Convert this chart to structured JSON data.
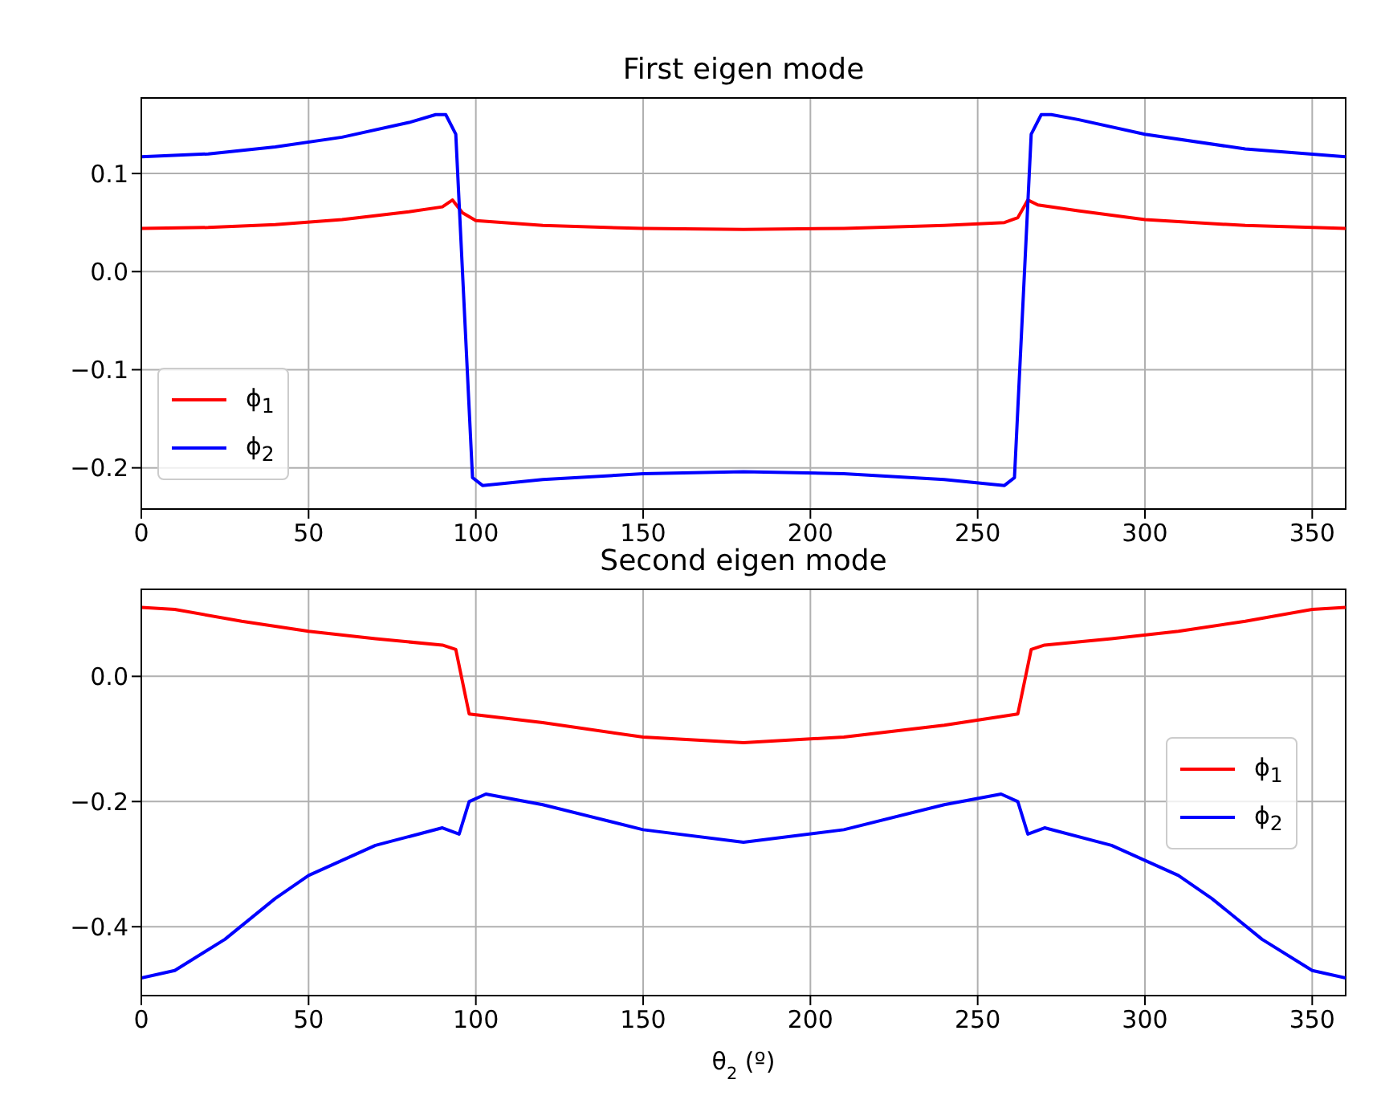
{
  "chart_data": [
    {
      "type": "line",
      "title": "First eigen mode",
      "xlim": [
        0,
        360
      ],
      "xticks": [
        0,
        50,
        100,
        150,
        200,
        250,
        300,
        350
      ],
      "ylim": [
        -0.242,
        0.177
      ],
      "yticks": [
        {
          "value": -0.2,
          "label": "−0.2"
        },
        {
          "value": -0.1,
          "label": "−0.1"
        },
        {
          "value": 0,
          "label": "0.0"
        },
        0.1
      ],
      "grid": true,
      "legend": "lower left",
      "series": [
        {
          "name": "ϕ$_{1}$",
          "color": "#ff0000",
          "x": [
            0,
            20,
            40,
            60,
            80,
            90,
            93,
            96,
            100,
            120,
            150,
            180,
            210,
            240,
            258,
            262,
            265,
            268,
            280,
            300,
            330,
            360
          ],
          "values": [
            0.044,
            0.045,
            0.048,
            0.053,
            0.061,
            0.066,
            0.073,
            0.06,
            0.052,
            0.047,
            0.044,
            0.043,
            0.044,
            0.047,
            0.05,
            0.055,
            0.073,
            0.068,
            0.062,
            0.053,
            0.047,
            0.044
          ]
        },
        {
          "name": "ϕ$_{2}$",
          "color": "#0000ff",
          "x": [
            0,
            20,
            40,
            60,
            80,
            88,
            91,
            94,
            99,
            102,
            120,
            150,
            180,
            210,
            240,
            258,
            261,
            266,
            269,
            272,
            280,
            300,
            330,
            360
          ],
          "values": [
            0.117,
            0.12,
            0.127,
            0.137,
            0.152,
            0.16,
            0.16,
            0.14,
            -0.21,
            -0.218,
            -0.212,
            -0.206,
            -0.204,
            -0.206,
            -0.212,
            -0.218,
            -0.21,
            0.14,
            0.16,
            0.16,
            0.155,
            0.14,
            0.125,
            0.117
          ]
        }
      ]
    },
    {
      "type": "line",
      "title": "Second eigen mode",
      "xlabel": "θ$_{2}$ (º)",
      "xlim": [
        0,
        360
      ],
      "xticks": [
        0,
        50,
        100,
        150,
        200,
        250,
        300,
        350
      ],
      "ylim": [
        -0.51,
        0.139
      ],
      "yticks": [
        {
          "value": -0.4,
          "label": "−0.4"
        },
        {
          "value": -0.2,
          "label": "−0.2"
        },
        {
          "value": 0,
          "label": "0.0"
        }
      ],
      "grid": true,
      "legend": "right",
      "series": [
        {
          "name": "ϕ$_{1}$",
          "color": "#ff0000",
          "x": [
            0,
            10,
            30,
            50,
            70,
            90,
            94,
            98,
            120,
            150,
            180,
            210,
            240,
            262,
            266,
            270,
            290,
            310,
            330,
            350,
            360
          ],
          "values": [
            0.11,
            0.107,
            0.088,
            0.072,
            0.06,
            0.05,
            0.043,
            -0.06,
            -0.074,
            -0.097,
            -0.106,
            -0.097,
            -0.078,
            -0.06,
            0.043,
            0.05,
            0.06,
            0.072,
            0.088,
            0.107,
            0.11
          ]
        },
        {
          "name": "ϕ$_{2}$",
          "color": "#0000ff",
          "x": [
            0,
            10,
            25,
            40,
            50,
            70,
            90,
            95,
            98,
            103,
            120,
            150,
            180,
            210,
            240,
            257,
            262,
            265,
            270,
            290,
            310,
            320,
            335,
            350,
            360
          ],
          "values": [
            -0.482,
            -0.47,
            -0.42,
            -0.355,
            -0.318,
            -0.27,
            -0.242,
            -0.252,
            -0.2,
            -0.188,
            -0.205,
            -0.245,
            -0.265,
            -0.245,
            -0.205,
            -0.188,
            -0.2,
            -0.252,
            -0.242,
            -0.27,
            -0.318,
            -0.355,
            -0.42,
            -0.47,
            -0.482
          ]
        }
      ]
    }
  ]
}
